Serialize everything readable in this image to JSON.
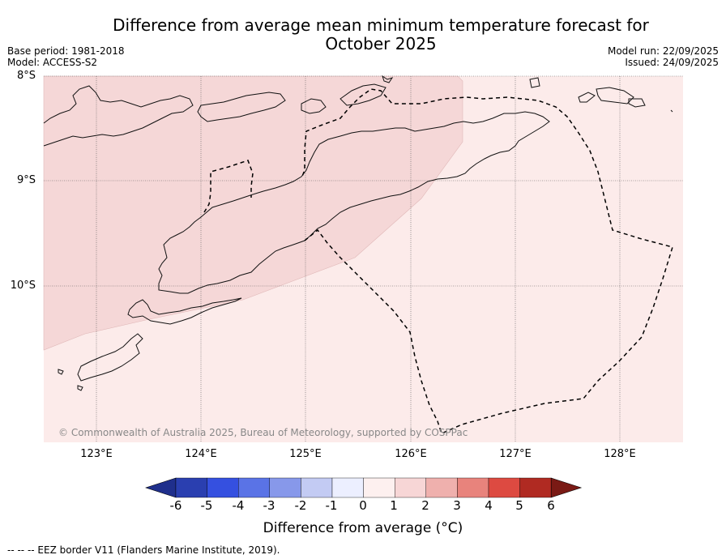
{
  "title_line1": "Difference from average mean minimum temperature forecast for",
  "title_line2": "October 2025",
  "base_period": "Base period: 1981-2018",
  "model": "Model: ACCESS-S2",
  "model_run": "Model run: 22/09/2025",
  "issued": "Issued: 24/09/2025",
  "lat_labels": [
    "8°S",
    "9°S",
    "10°S"
  ],
  "lon_labels": [
    "123°E",
    "124°E",
    "125°E",
    "126°E",
    "127°E",
    "128°E"
  ],
  "copyright": "© Commonwealth of Australia 2025, Bureau of Meteorology, supported by COSPPac",
  "colorbar": {
    "label": "Difference from average (°C)",
    "ticks": [
      "-6",
      "-5",
      "-4",
      "-3",
      "-2",
      "-1",
      "0",
      "1",
      "2",
      "3",
      "4",
      "5",
      "6"
    ],
    "colors": [
      "#1f2f8c",
      "#2a3fb0",
      "#3550e0",
      "#5a73e6",
      "#8798ea",
      "#c3cbf3",
      "#ecefff",
      "#fdf0ef",
      "#f7d6d6",
      "#efb0ad",
      "#e8837c",
      "#dd4a41",
      "#b02a22",
      "#7a1a15"
    ]
  },
  "map_fill": {
    "band_1_2_color": "#f5d7d7",
    "band_0_1_color": "#fcebea"
  },
  "legend_note": "--  --  -- EEZ border V11 (Flanders Marine Institute, 2019)."
}
